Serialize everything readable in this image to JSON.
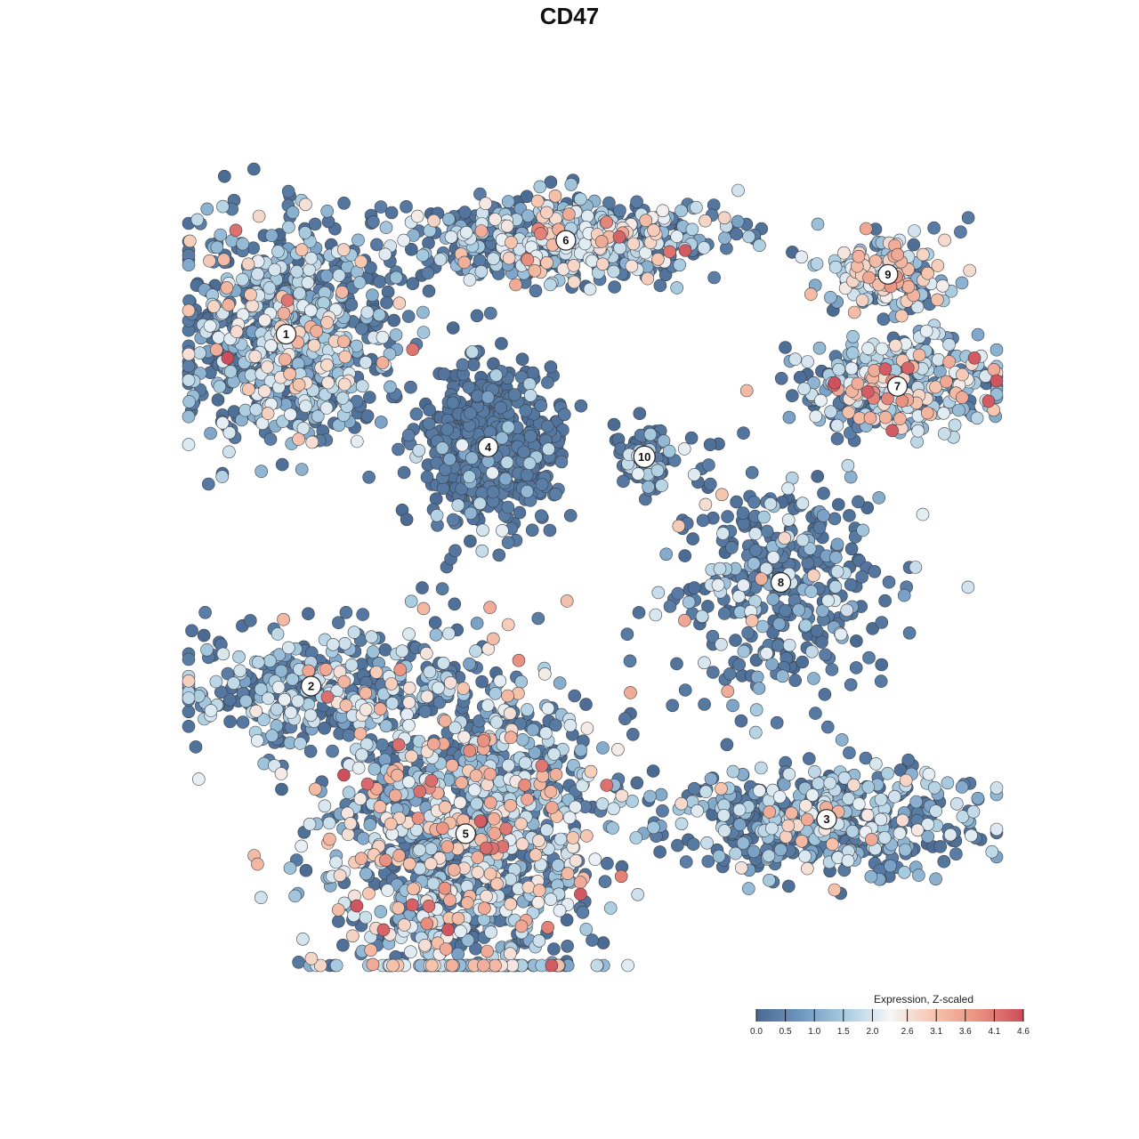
{
  "chart_data": {
    "type": "scatter",
    "title": "CD47",
    "xlabel": "",
    "ylabel": "",
    "grid": false,
    "legend": {
      "title": "Expression, Z-scaled",
      "placement": "bottom-right",
      "ticks": [
        "0.0",
        "0.5",
        "1.0",
        "1.5",
        "2.0",
        "2.6",
        "3.1",
        "3.6",
        "4.1",
        "4.6"
      ],
      "range": [
        0,
        4.6
      ],
      "colors": [
        "#4a6a92",
        "#6f97c0",
        "#a9cce0",
        "#f4f6f8",
        "#f6c4ad",
        "#ea9080",
        "#cc4c5a"
      ]
    },
    "clusters": [
      {
        "label": "1",
        "x": 0.13,
        "y": 0.711,
        "spread": [
          0.11,
          0.126
        ],
        "n": 850,
        "mix": [
          0.5,
          0.42,
          0.07,
          0.01
        ]
      },
      {
        "label": "6",
        "x": 0.454,
        "y": 0.835,
        "spread": [
          0.16,
          0.047
        ],
        "n": 650,
        "mix": [
          0.45,
          0.45,
          0.09,
          0.01
        ]
      },
      {
        "label": "9",
        "x": 0.827,
        "y": 0.79,
        "spread": [
          0.066,
          0.045
        ],
        "n": 180,
        "mix": [
          0.3,
          0.46,
          0.22,
          0.02
        ]
      },
      {
        "label": "7",
        "x": 0.838,
        "y": 0.642,
        "spread": [
          0.108,
          0.055
        ],
        "n": 340,
        "mix": [
          0.3,
          0.48,
          0.19,
          0.03
        ]
      },
      {
        "label": "4",
        "x": 0.364,
        "y": 0.562,
        "spread": [
          0.07,
          0.095
        ],
        "n": 560,
        "mix": [
          0.95,
          0.05,
          0.0,
          0.0
        ]
      },
      {
        "label": "10",
        "x": 0.545,
        "y": 0.549,
        "spread": [
          0.03,
          0.045
        ],
        "n": 90,
        "mix": [
          0.6,
          0.38,
          0.02,
          0.0
        ]
      },
      {
        "label": "8",
        "x": 0.703,
        "y": 0.383,
        "spread": [
          0.11,
          0.14
        ],
        "n": 360,
        "mix": [
          0.7,
          0.27,
          0.03,
          0.0
        ]
      },
      {
        "label": "2",
        "x": 0.159,
        "y": 0.246,
        "spread": [
          0.15,
          0.075
        ],
        "n": 320,
        "mix": [
          0.55,
          0.4,
          0.04,
          0.01
        ]
      },
      {
        "label": "3",
        "x": 0.756,
        "y": 0.07,
        "spread": [
          0.16,
          0.065
        ],
        "n": 500,
        "mix": [
          0.5,
          0.45,
          0.05,
          0.0
        ]
      },
      {
        "label": "5",
        "x": 0.338,
        "y": 0.051,
        "spread": [
          0.145,
          0.2
        ],
        "n": 1300,
        "mix": [
          0.4,
          0.42,
          0.16,
          0.02
        ]
      }
    ]
  }
}
